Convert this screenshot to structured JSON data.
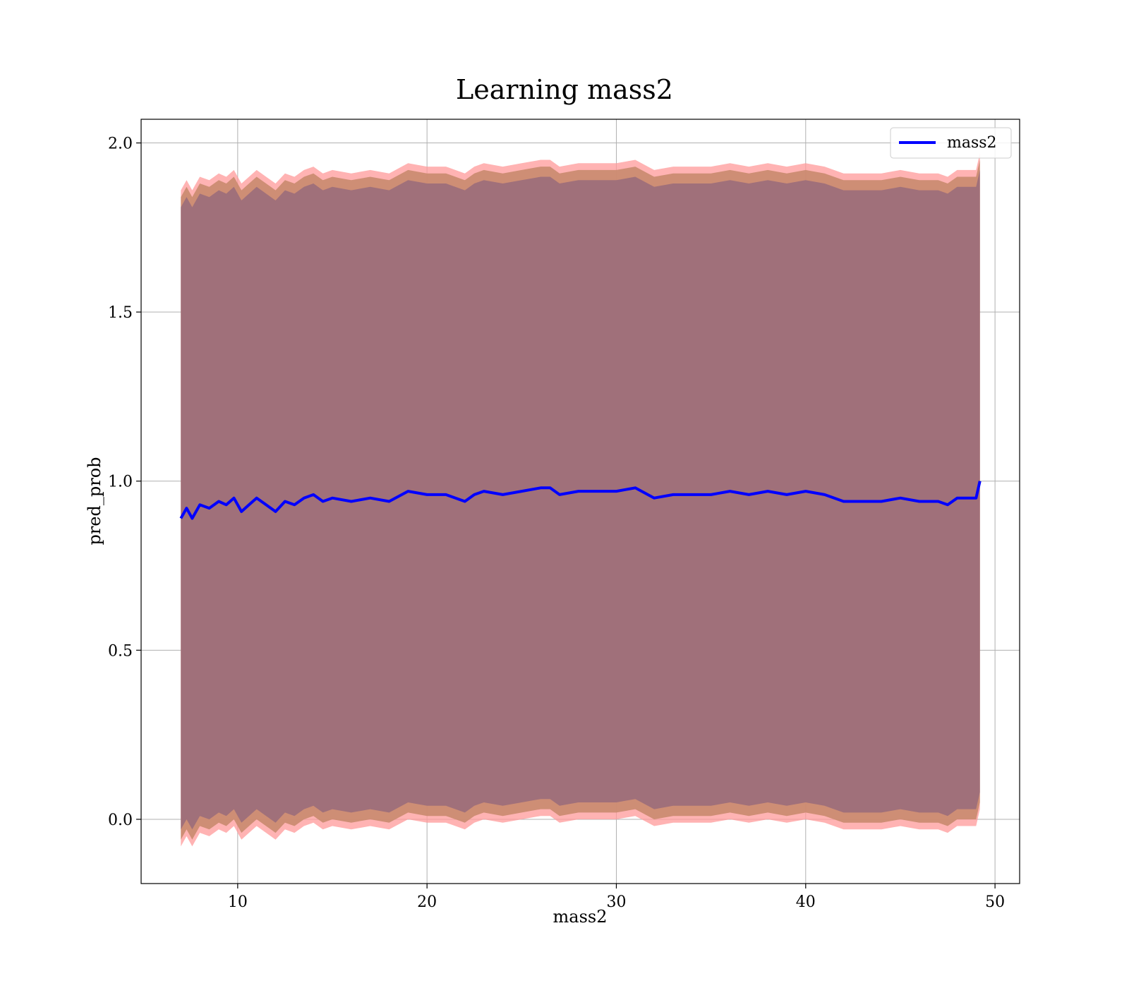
{
  "chart_data": {
    "type": "line",
    "title": "Learning mass2",
    "xlabel": "mass2",
    "ylabel": "pred_prob",
    "xlim": [
      4.9,
      51.3
    ],
    "ylim": [
      -0.19,
      2.07
    ],
    "xticks": [
      10,
      20,
      30,
      40,
      50
    ],
    "yticks": [
      0.0,
      0.5,
      1.0,
      1.5,
      2.0
    ],
    "xtick_labels": [
      "10",
      "20",
      "30",
      "40",
      "50"
    ],
    "ytick_labels": [
      "0.0",
      "0.5",
      "1.0",
      "1.5",
      "2.0"
    ],
    "grid": true,
    "legend_position": "upper-right",
    "colors": {
      "line": "#0000ff",
      "band_outer": "#ff9999",
      "band_middle": "#c98a6e",
      "band_inner": "#a0707a",
      "grid": "#b0b0b0",
      "axes": "#000000"
    },
    "series": [
      {
        "name": "mass2",
        "x": [
          7.0,
          7.3,
          7.6,
          8.0,
          8.5,
          9.0,
          9.4,
          9.8,
          10.2,
          10.6,
          11.0,
          11.5,
          12.0,
          12.5,
          13.0,
          13.5,
          14.0,
          14.5,
          15.0,
          16.0,
          17.0,
          18.0,
          19.0,
          20.0,
          21.0,
          22.0,
          22.5,
          23.0,
          24.0,
          25.0,
          26.0,
          26.5,
          27.0,
          28.0,
          29.0,
          30.0,
          31.0,
          32.0,
          33.0,
          34.0,
          35.0,
          36.0,
          37.0,
          38.0,
          39.0,
          40.0,
          41.0,
          42.0,
          43.0,
          44.0,
          45.0,
          46.0,
          47.0,
          47.5,
          48.0,
          48.5,
          49.0,
          49.2
        ],
        "y": [
          0.89,
          0.92,
          0.89,
          0.93,
          0.92,
          0.94,
          0.93,
          0.95,
          0.91,
          0.93,
          0.95,
          0.93,
          0.91,
          0.94,
          0.93,
          0.95,
          0.96,
          0.94,
          0.95,
          0.94,
          0.95,
          0.94,
          0.97,
          0.96,
          0.96,
          0.94,
          0.96,
          0.97,
          0.96,
          0.97,
          0.98,
          0.98,
          0.96,
          0.97,
          0.97,
          0.97,
          0.98,
          0.95,
          0.96,
          0.96,
          0.96,
          0.97,
          0.96,
          0.97,
          0.96,
          0.97,
          0.96,
          0.94,
          0.94,
          0.94,
          0.95,
          0.94,
          0.94,
          0.93,
          0.95,
          0.95,
          0.95,
          1.0
        ],
        "band_outer": {
          "offset": 0.97
        },
        "band_middle": {
          "offset": 0.95
        },
        "band_inner": {
          "offset": 0.92
        }
      }
    ]
  }
}
